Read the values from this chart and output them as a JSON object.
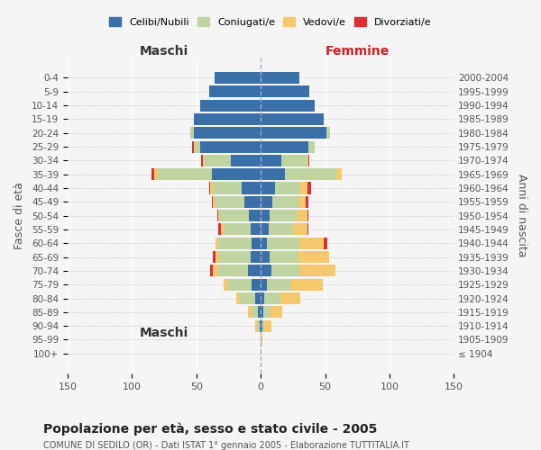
{
  "age_groups": [
    "100+",
    "95-99",
    "90-94",
    "85-89",
    "80-84",
    "75-79",
    "70-74",
    "65-69",
    "60-64",
    "55-59",
    "50-54",
    "45-49",
    "40-44",
    "35-39",
    "30-34",
    "25-29",
    "20-24",
    "15-19",
    "10-14",
    "5-9",
    "0-4"
  ],
  "year_labels": [
    "≤ 1904",
    "1905-1909",
    "1910-1914",
    "1915-1919",
    "1920-1924",
    "1925-1929",
    "1930-1934",
    "1935-1939",
    "1940-1944",
    "1945-1949",
    "1950-1954",
    "1955-1959",
    "1960-1964",
    "1965-1969",
    "1970-1974",
    "1975-1979",
    "1980-1984",
    "1985-1989",
    "1990-1994",
    "1995-1999",
    "2000-2004"
  ],
  "maschi": {
    "celibi": [
      0,
      0,
      1,
      2,
      4,
      7,
      10,
      8,
      7,
      8,
      9,
      13,
      15,
      38,
      23,
      47,
      52,
      52,
      47,
      40,
      36
    ],
    "coniugati": [
      0,
      0,
      2,
      5,
      12,
      18,
      23,
      24,
      26,
      21,
      23,
      23,
      22,
      42,
      21,
      5,
      3,
      0,
      0,
      0,
      0
    ],
    "vedovi": [
      0,
      0,
      1,
      3,
      3,
      4,
      4,
      3,
      2,
      2,
      1,
      1,
      2,
      3,
      1,
      0,
      0,
      0,
      0,
      0,
      0
    ],
    "divorziati": [
      0,
      0,
      0,
      0,
      0,
      0,
      2,
      2,
      0,
      2,
      1,
      1,
      1,
      2,
      1,
      1,
      0,
      0,
      0,
      0,
      0
    ]
  },
  "femmine": {
    "nubili": [
      0,
      0,
      1,
      2,
      3,
      5,
      8,
      7,
      5,
      6,
      7,
      9,
      11,
      19,
      16,
      37,
      51,
      49,
      42,
      38,
      30
    ],
    "coniugate": [
      0,
      0,
      2,
      5,
      12,
      18,
      22,
      22,
      25,
      19,
      21,
      20,
      20,
      40,
      20,
      5,
      3,
      0,
      0,
      0,
      0
    ],
    "vedove": [
      0,
      1,
      5,
      10,
      16,
      25,
      28,
      24,
      19,
      11,
      8,
      6,
      5,
      4,
      1,
      0,
      0,
      0,
      0,
      0,
      0
    ],
    "divorziate": [
      0,
      0,
      0,
      0,
      0,
      0,
      0,
      0,
      3,
      1,
      1,
      2,
      3,
      0,
      1,
      0,
      0,
      0,
      0,
      0,
      0
    ]
  },
  "colors": {
    "celibi": "#3a6fa8",
    "coniugati": "#bfd4a0",
    "vedovi": "#f5c86e",
    "divorziati": "#d93030"
  },
  "xlim": 150,
  "title": "Popolazione per età, sesso e stato civile - 2005",
  "subtitle": "COMUNE DI SEDILO (OR) - Dati ISTAT 1° gennaio 2005 - Elaborazione TUTTITALIA.IT",
  "xlabel_left": "Maschi",
  "xlabel_right": "Femmine",
  "ylabel_left": "Fasce di età",
  "ylabel_right": "Anni di nascita",
  "legend_labels": [
    "Celibi/Nubili",
    "Coniugati/e",
    "Vedovi/e",
    "Divorziati/e"
  ],
  "bg_color": "#f5f5f5",
  "plot_bg": "#f5f5f5"
}
